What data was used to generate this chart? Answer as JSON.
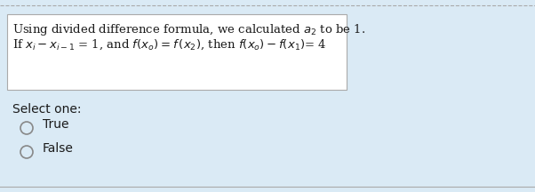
{
  "bg_color": "#daeaf5",
  "box_bg": "#ffffff",
  "box_border": "#aaaaaa",
  "top_border_color": "#b0c4d8",
  "text_color": "#1a1a1a",
  "radio_color": "#888888",
  "font_size_main": 9.5,
  "font_size_select": 10.0,
  "line1": "Using divided difference formula, we calculated $a_2$ to be 1.",
  "line2": "If $x_i - x_{i-1}$ = 1, and $f(x_o) = f\\,(x_2)$, then $f(x_o) - f(x_1)$= 4",
  "select_text": "Select one:",
  "true_text": "True",
  "false_text": "False"
}
